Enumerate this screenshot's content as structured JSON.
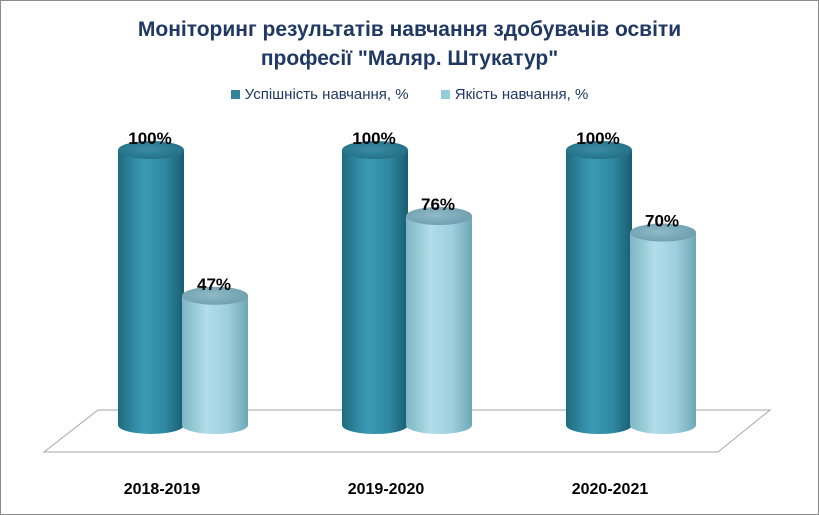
{
  "chart_data": {
    "type": "bar",
    "title_line1": "Моніторинг результатів навчання здобувачів освіти",
    "title_line2": "професії \"Маляр. Штукатур\"",
    "categories": [
      "2018-2019",
      "2019-2020",
      "2020-2021"
    ],
    "series": [
      {
        "name": "Успішність навчання, %",
        "values": [
          100,
          100,
          100
        ],
        "labels": [
          "100%",
          "100%",
          "100%"
        ],
        "color": "#31849b"
      },
      {
        "name": "Якість навчання, %",
        "values": [
          47,
          76,
          70
        ],
        "labels": [
          "47%",
          "76%",
          "70%"
        ],
        "color": "#92cddc"
      }
    ],
    "ylim": [
      0,
      100
    ],
    "legend_position": "top",
    "grid": false,
    "style": "3d-cylinder"
  }
}
